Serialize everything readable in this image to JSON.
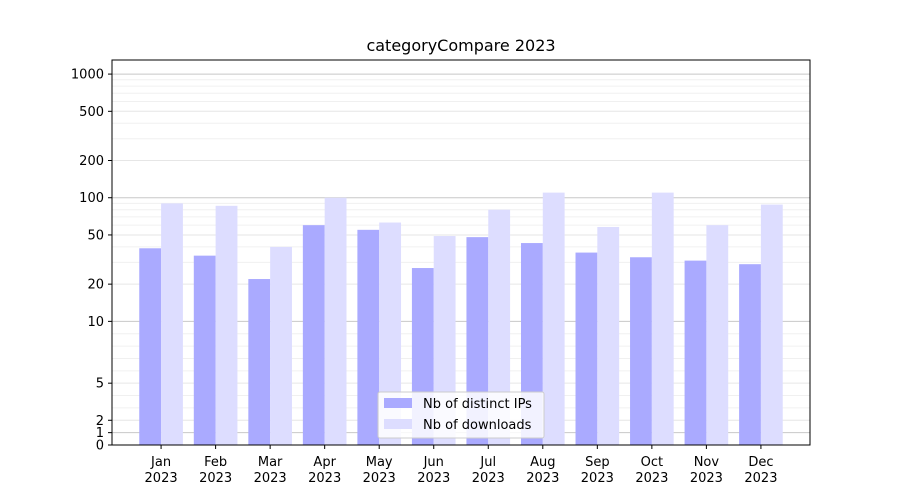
{
  "chart_data": {
    "type": "bar",
    "title": "categoryCompare 2023",
    "xlabel": "",
    "ylabel": "",
    "yscale": "symlog",
    "ylim": [
      0,
      1300
    ],
    "yticks": [
      0,
      1,
      2,
      5,
      10,
      20,
      50,
      100,
      200,
      500,
      1000
    ],
    "ytick_labels": [
      "0",
      "1",
      "2",
      "5",
      "10",
      "20",
      "50",
      "100",
      "200",
      "500",
      "1000"
    ],
    "grid": true,
    "legend_position": "bottom-center",
    "categories": [
      [
        "Jan",
        "2023"
      ],
      [
        "Feb",
        "2023"
      ],
      [
        "Mar",
        "2023"
      ],
      [
        "Apr",
        "2023"
      ],
      [
        "May",
        "2023"
      ],
      [
        "Jun",
        "2023"
      ],
      [
        "Jul",
        "2023"
      ],
      [
        "Aug",
        "2023"
      ],
      [
        "Sep",
        "2023"
      ],
      [
        "Oct",
        "2023"
      ],
      [
        "Nov",
        "2023"
      ],
      [
        "Dec",
        "2023"
      ]
    ],
    "series": [
      {
        "name": "Nb of distinct IPs",
        "color": "#aaaaff",
        "values": [
          39,
          34,
          22,
          60,
          55,
          27,
          48,
          43,
          36,
          33,
          31,
          29
        ]
      },
      {
        "name": "Nb of downloads",
        "color": "#ddddff",
        "values": [
          90,
          86,
          40,
          100,
          63,
          49,
          80,
          110,
          58,
          110,
          60,
          88
        ]
      }
    ]
  }
}
